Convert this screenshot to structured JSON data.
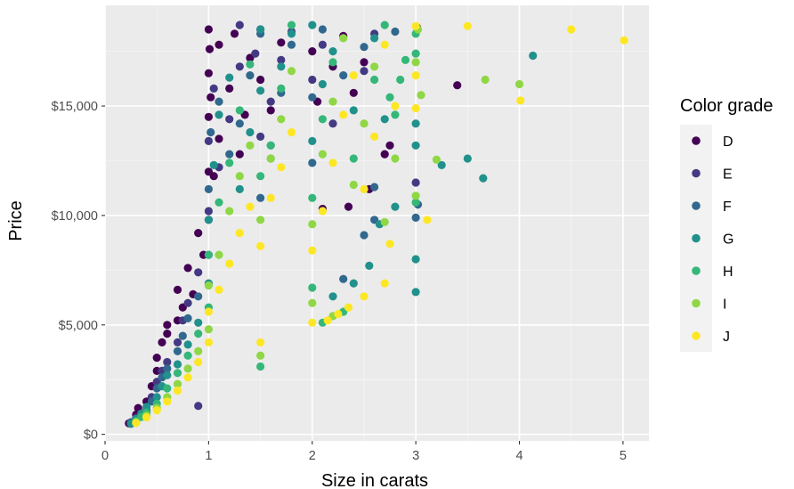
{
  "chart_data": {
    "type": "scatter",
    "title": "",
    "xlabel": "Size in carats",
    "ylabel": "Price",
    "xlim": [
      -0.0,
      5.25
    ],
    "ylim": [
      -300,
      19600
    ],
    "x_ticks": [
      0,
      1,
      2,
      3,
      4,
      5
    ],
    "x_tick_labels": [
      "0",
      "1",
      "2",
      "3",
      "4",
      "5"
    ],
    "y_ticks": [
      0,
      5000,
      10000,
      15000
    ],
    "y_tick_labels": [
      "$0",
      "$5,000",
      "$10,000",
      "$15,000"
    ],
    "grid": true,
    "panel_background": "#ebebeb",
    "legend": {
      "title": "Color grade",
      "placement": "right",
      "entries": [
        "D",
        "E",
        "F",
        "G",
        "H",
        "I",
        "J"
      ]
    },
    "series": [
      {
        "name": "D",
        "color": "#440154",
        "points": [
          [
            0.23,
            500
          ],
          [
            0.3,
            900
          ],
          [
            0.32,
            1200
          ],
          [
            0.4,
            1500
          ],
          [
            0.45,
            2200
          ],
          [
            0.5,
            2900
          ],
          [
            0.5,
            3500
          ],
          [
            0.55,
            4200
          ],
          [
            0.6,
            5000
          ],
          [
            0.6,
            4600
          ],
          [
            0.7,
            5200
          ],
          [
            0.7,
            6600
          ],
          [
            0.75,
            5800
          ],
          [
            0.8,
            7600
          ],
          [
            0.85,
            6400
          ],
          [
            0.9,
            9200
          ],
          [
            0.95,
            8200
          ],
          [
            1.0,
            9800
          ],
          [
            1.0,
            12000
          ],
          [
            1.0,
            14500
          ],
          [
            1.0,
            16500
          ],
          [
            1.0,
            18500
          ],
          [
            1.01,
            17600
          ],
          [
            1.02,
            15400
          ],
          [
            1.05,
            11800
          ],
          [
            1.1,
            13500
          ],
          [
            1.1,
            17800
          ],
          [
            1.2,
            15800
          ],
          [
            1.25,
            18300
          ],
          [
            1.3,
            12800
          ],
          [
            1.35,
            14600
          ],
          [
            1.4,
            17200
          ],
          [
            1.5,
            16200
          ],
          [
            1.5,
            18500
          ],
          [
            1.6,
            14800
          ],
          [
            1.7,
            17900
          ],
          [
            2.0,
            17500
          ],
          [
            2.05,
            15200
          ],
          [
            2.2,
            16800
          ],
          [
            2.3,
            18200
          ],
          [
            2.4,
            15600
          ],
          [
            2.5,
            17000
          ],
          [
            2.75,
            13200
          ],
          [
            3.4,
            15950
          ],
          [
            2.1,
            10300
          ],
          [
            2.35,
            10400
          ],
          [
            2.55,
            11200
          ],
          [
            2.7,
            12800
          ],
          [
            3.01,
            18600
          ]
        ]
      },
      {
        "name": "E",
        "color": "#443a83",
        "points": [
          [
            0.25,
            550
          ],
          [
            0.3,
            750
          ],
          [
            0.35,
            900
          ],
          [
            0.4,
            1100
          ],
          [
            0.45,
            1700
          ],
          [
            0.5,
            2400
          ],
          [
            0.55,
            2900
          ],
          [
            0.6,
            3300
          ],
          [
            0.7,
            4200
          ],
          [
            0.75,
            5200
          ],
          [
            0.8,
            6000
          ],
          [
            0.9,
            7400
          ],
          [
            0.9,
            1300
          ],
          [
            1.0,
            10200
          ],
          [
            1.0,
            13400
          ],
          [
            1.05,
            15800
          ],
          [
            1.1,
            12200
          ],
          [
            1.2,
            14400
          ],
          [
            1.3,
            16800
          ],
          [
            1.3,
            18700
          ],
          [
            1.45,
            17400
          ],
          [
            1.5,
            13600
          ],
          [
            1.6,
            15200
          ],
          [
            1.7,
            17100
          ],
          [
            1.8,
            18400
          ],
          [
            2.0,
            16200
          ],
          [
            2.1,
            17800
          ],
          [
            2.2,
            14200
          ],
          [
            2.5,
            16600
          ],
          [
            2.6,
            18300
          ],
          [
            3.0,
            11500
          ]
        ]
      },
      {
        "name": "F",
        "color": "#31688e",
        "points": [
          [
            0.25,
            480
          ],
          [
            0.3,
            650
          ],
          [
            0.35,
            850
          ],
          [
            0.4,
            1050
          ],
          [
            0.45,
            1500
          ],
          [
            0.5,
            2100
          ],
          [
            0.55,
            2600
          ],
          [
            0.6,
            3000
          ],
          [
            0.7,
            3800
          ],
          [
            0.75,
            4500
          ],
          [
            0.8,
            5300
          ],
          [
            0.9,
            6300
          ],
          [
            1.0,
            8200
          ],
          [
            1.0,
            11200
          ],
          [
            1.02,
            13800
          ],
          [
            1.1,
            15200
          ],
          [
            1.2,
            12800
          ],
          [
            1.3,
            14200
          ],
          [
            1.4,
            16400
          ],
          [
            1.5,
            10800
          ],
          [
            1.5,
            18300
          ],
          [
            1.6,
            13200
          ],
          [
            1.7,
            15600
          ],
          [
            1.8,
            17800
          ],
          [
            2.0,
            12400
          ],
          [
            2.0,
            15400
          ],
          [
            2.1,
            18500
          ],
          [
            2.3,
            16400
          ],
          [
            2.5,
            17700
          ],
          [
            2.6,
            11300
          ],
          [
            2.8,
            18400
          ],
          [
            3.0,
            9900
          ],
          [
            3.02,
            10500
          ],
          [
            2.3,
            7100
          ],
          [
            2.5,
            9100
          ],
          [
            2.6,
            9800
          ]
        ]
      },
      {
        "name": "G",
        "color": "#21918c",
        "points": [
          [
            0.25,
            500
          ],
          [
            0.3,
            700
          ],
          [
            0.35,
            950
          ],
          [
            0.4,
            1250
          ],
          [
            0.5,
            1700
          ],
          [
            0.55,
            2200
          ],
          [
            0.6,
            2700
          ],
          [
            0.7,
            3200
          ],
          [
            0.8,
            4100
          ],
          [
            0.9,
            5100
          ],
          [
            1.0,
            6900
          ],
          [
            1.0,
            9800
          ],
          [
            1.05,
            12300
          ],
          [
            1.1,
            14600
          ],
          [
            1.2,
            16300
          ],
          [
            1.3,
            11200
          ],
          [
            1.4,
            13800
          ],
          [
            1.5,
            15700
          ],
          [
            1.5,
            18500
          ],
          [
            1.6,
            12600
          ],
          [
            1.7,
            16800
          ],
          [
            1.8,
            18300
          ],
          [
            2.0,
            13400
          ],
          [
            2.0,
            18700
          ],
          [
            2.1,
            16000
          ],
          [
            2.2,
            17500
          ],
          [
            2.4,
            14800
          ],
          [
            2.6,
            18100
          ],
          [
            2.7,
            14400
          ],
          [
            3.0,
            13200
          ],
          [
            3.0,
            14200
          ],
          [
            3.0,
            8000
          ],
          [
            3.0,
            6500
          ],
          [
            3.5,
            12600
          ],
          [
            3.65,
            11700
          ],
          [
            4.13,
            17300
          ],
          [
            2.2,
            6300
          ],
          [
            2.4,
            6900
          ],
          [
            2.55,
            7700
          ],
          [
            2.65,
            9600
          ],
          [
            2.8,
            10400
          ],
          [
            3.25,
            12300
          ]
        ]
      },
      {
        "name": "H",
        "color": "#35b779",
        "points": [
          [
            0.3,
            600
          ],
          [
            0.35,
            800
          ],
          [
            0.4,
            1000
          ],
          [
            0.5,
            1400
          ],
          [
            0.6,
            2100
          ],
          [
            0.7,
            2800
          ],
          [
            0.8,
            3600
          ],
          [
            0.9,
            4600
          ],
          [
            1.0,
            5800
          ],
          [
            1.0,
            8200
          ],
          [
            1.1,
            10600
          ],
          [
            1.2,
            12400
          ],
          [
            1.3,
            14800
          ],
          [
            1.4,
            16900
          ],
          [
            1.5,
            3100
          ],
          [
            1.5,
            11800
          ],
          [
            1.6,
            13200
          ],
          [
            1.7,
            15800
          ],
          [
            1.8,
            18700
          ],
          [
            2.0,
            10800
          ],
          [
            2.0,
            6700
          ],
          [
            2.1,
            14400
          ],
          [
            2.2,
            17000
          ],
          [
            2.4,
            12600
          ],
          [
            2.6,
            16200
          ],
          [
            2.7,
            18700
          ],
          [
            2.8,
            14600
          ],
          [
            2.9,
            17100
          ],
          [
            3.0,
            17400
          ],
          [
            3.0,
            18300
          ],
          [
            3.0,
            10600
          ],
          [
            2.1,
            5100
          ],
          [
            2.3,
            5600
          ],
          [
            2.75,
            15400
          ],
          [
            2.85,
            16200
          ]
        ]
      },
      {
        "name": "I",
        "color": "#8fd744",
        "points": [
          [
            0.3,
            550
          ],
          [
            0.4,
            850
          ],
          [
            0.5,
            1200
          ],
          [
            0.6,
            1700
          ],
          [
            0.7,
            2300
          ],
          [
            0.8,
            3000
          ],
          [
            0.9,
            3800
          ],
          [
            1.0,
            4800
          ],
          [
            1.0,
            6800
          ],
          [
            1.1,
            8200
          ],
          [
            1.2,
            10200
          ],
          [
            1.3,
            11800
          ],
          [
            1.4,
            13200
          ],
          [
            1.5,
            3600
          ],
          [
            1.5,
            9800
          ],
          [
            1.6,
            12600
          ],
          [
            1.7,
            14400
          ],
          [
            1.8,
            16600
          ],
          [
            2.0,
            9600
          ],
          [
            2.0,
            6000
          ],
          [
            2.1,
            12800
          ],
          [
            2.2,
            15200
          ],
          [
            2.3,
            18100
          ],
          [
            2.4,
            11400
          ],
          [
            2.5,
            14200
          ],
          [
            2.6,
            16800
          ],
          [
            2.7,
            9700
          ],
          [
            2.8,
            12600
          ],
          [
            3.0,
            10900
          ],
          [
            3.0,
            17000
          ],
          [
            3.02,
            18500
          ],
          [
            3.05,
            15500
          ],
          [
            3.2,
            12550
          ],
          [
            3.67,
            16200
          ],
          [
            4.0,
            16000
          ],
          [
            2.2,
            5400
          ]
        ]
      },
      {
        "name": "J",
        "color": "#fde725",
        "points": [
          [
            0.3,
            520
          ],
          [
            0.4,
            780
          ],
          [
            0.5,
            1100
          ],
          [
            0.6,
            1500
          ],
          [
            0.7,
            2000
          ],
          [
            0.8,
            2600
          ],
          [
            0.9,
            3300
          ],
          [
            1.0,
            4200
          ],
          [
            1.0,
            5600
          ],
          [
            1.1,
            6600
          ],
          [
            1.2,
            7800
          ],
          [
            1.3,
            9200
          ],
          [
            1.4,
            10400
          ],
          [
            1.5,
            4200
          ],
          [
            1.5,
            8600
          ],
          [
            1.6,
            10800
          ],
          [
            1.7,
            12200
          ],
          [
            1.8,
            13800
          ],
          [
            2.0,
            5100
          ],
          [
            2.0,
            8400
          ],
          [
            2.1,
            10200
          ],
          [
            2.2,
            12400
          ],
          [
            2.3,
            14600
          ],
          [
            2.4,
            16400
          ],
          [
            2.5,
            6300
          ],
          [
            2.5,
            11200
          ],
          [
            2.6,
            13600
          ],
          [
            2.7,
            17800
          ],
          [
            2.7,
            6900
          ],
          [
            2.75,
            8700
          ],
          [
            2.8,
            15000
          ],
          [
            3.0,
            14900
          ],
          [
            3.0,
            16400
          ],
          [
            3.0,
            18650
          ],
          [
            3.11,
            9800
          ],
          [
            3.5,
            18650
          ],
          [
            4.01,
            15250
          ],
          [
            4.5,
            18500
          ],
          [
            5.01,
            18000
          ],
          [
            2.15,
            5200
          ],
          [
            2.25,
            5500
          ],
          [
            2.35,
            5800
          ]
        ]
      }
    ]
  }
}
